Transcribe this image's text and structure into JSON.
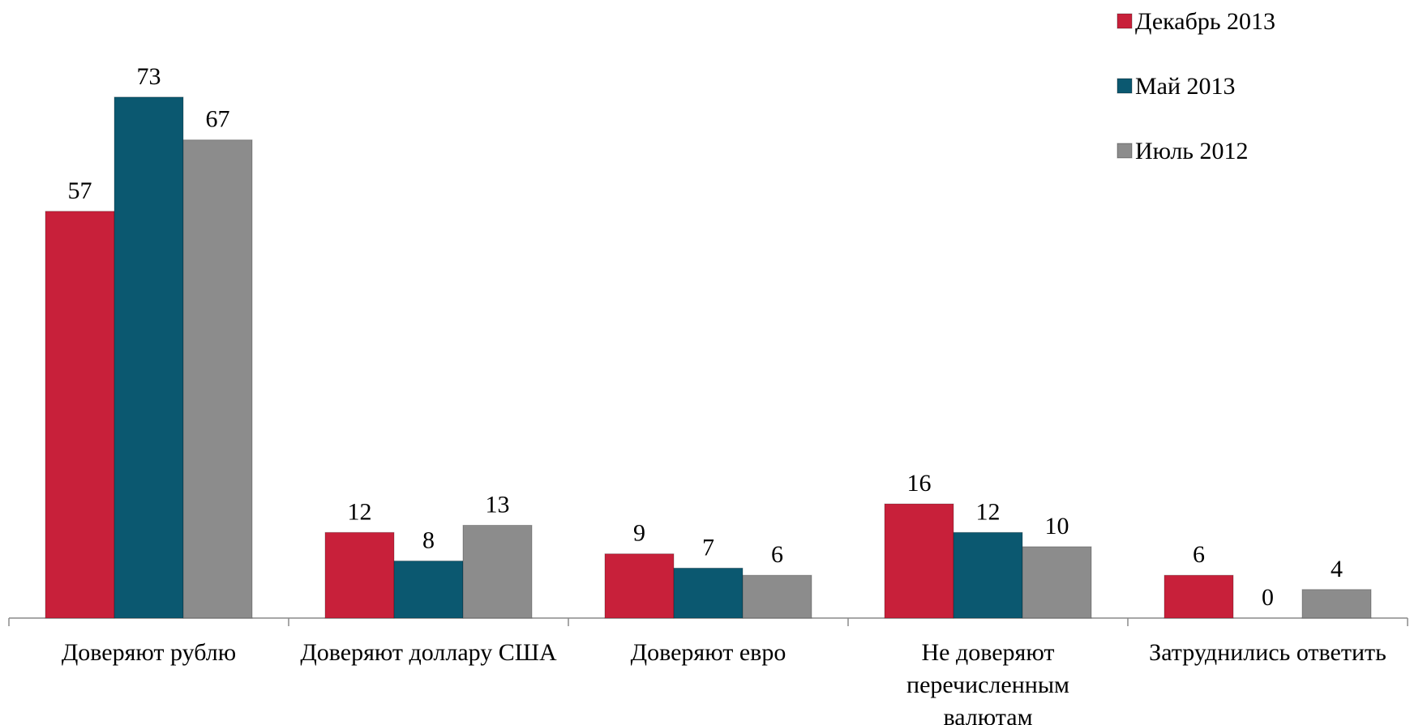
{
  "chart_data": {
    "type": "bar",
    "categories": [
      "Доверяют рублю",
      "Доверяют доллару США",
      "Доверяют евро",
      "Не доверяют перечисленным валютам",
      "Затруднились ответить"
    ],
    "series": [
      {
        "name": "Декабрь 2013",
        "color": "#c8203a",
        "values": [
          57,
          12,
          9,
          16,
          6
        ]
      },
      {
        "name": "Май 2013",
        "color": "#0b5870",
        "values": [
          73,
          8,
          7,
          12,
          0
        ]
      },
      {
        "name": "Июль 2012",
        "color": "#8c8c8c",
        "values": [
          67,
          13,
          6,
          10,
          4
        ]
      }
    ],
    "ylim": [
      0,
      80
    ],
    "legend": "top-right"
  }
}
